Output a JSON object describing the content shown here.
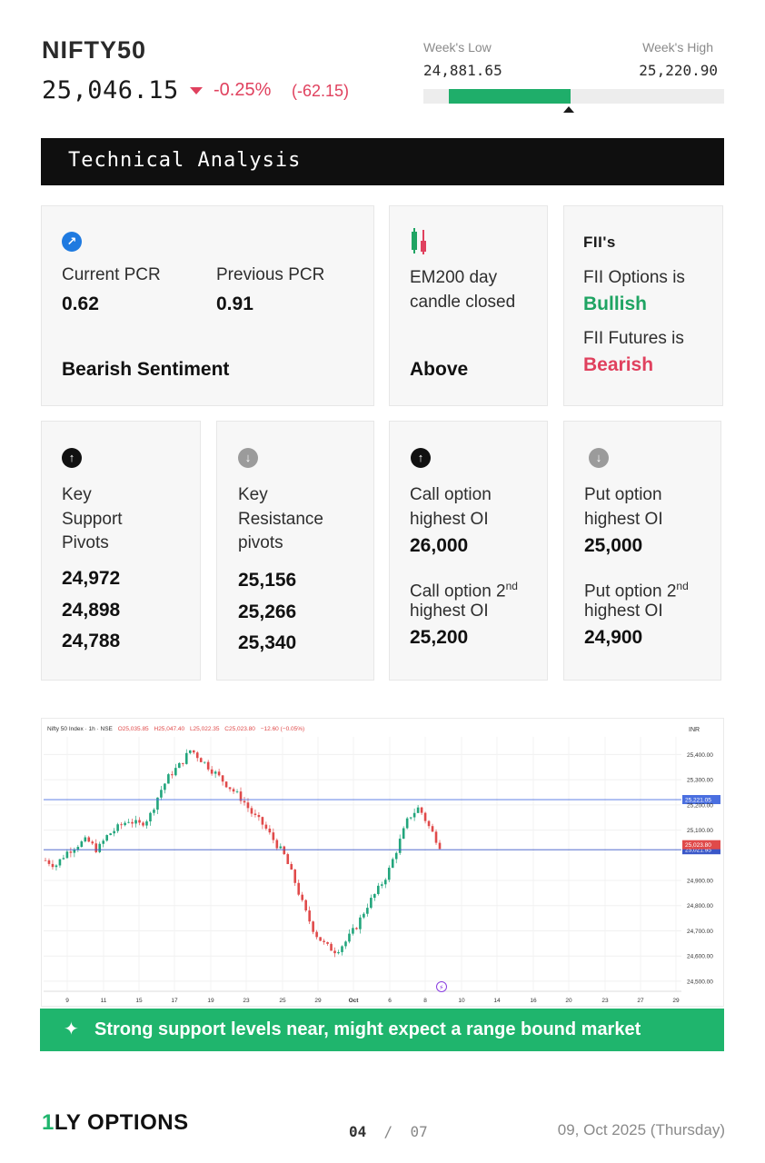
{
  "header": {
    "ticker": "NIFTY50",
    "price": "25,046.15",
    "change_pct": "-0.25%",
    "change_abs": "(-62.15)",
    "week_low_label": "Week's Low",
    "week_low_value": "24,881.65",
    "week_high_label": "Week's High",
    "week_high_value": "25,220.90",
    "range_fill_start_fraction": 0.085,
    "range_fill_end_fraction": 0.49
  },
  "section_title": "Technical Analysis",
  "pcr_card": {
    "icon": "arrow-up-right-icon",
    "current_label": "Current PCR",
    "current_value": "0.62",
    "previous_label": "Previous PCR",
    "previous_value": "0.91",
    "sentiment": "Bearish Sentiment"
  },
  "ema_card": {
    "icon": "candlestick-icon",
    "line1": "EM200 day",
    "line2": "candle closed",
    "value": "Above"
  },
  "fii_card": {
    "logo_text": "FII's",
    "options_label": "FII Options is",
    "options_value": "Bullish",
    "futures_label": "FII Futures is",
    "futures_value": "Bearish"
  },
  "support_card": {
    "icon": "arrow-up-icon",
    "label_lines": [
      "Key",
      "Support",
      "Pivots"
    ],
    "values": [
      "24,972",
      "24,898",
      "24,788"
    ]
  },
  "resistance_card": {
    "icon": "arrow-down-icon",
    "label_lines": [
      "Key",
      "Resistance",
      "pivots"
    ],
    "values": [
      "25,156",
      "25,266",
      "25,340"
    ]
  },
  "call_card": {
    "icon": "arrow-up-icon",
    "l1a": "Call option",
    "l1b": "highest OI",
    "v1": "26,000",
    "l2a": "Call option 2",
    "l2sup": "nd",
    "l2b": "highest OI",
    "v2": "25,200"
  },
  "put_card": {
    "icon": "arrow-down-icon",
    "l1a": "Put option",
    "l1b": "highest OI",
    "v1": "25,000",
    "l2a": "Put option 2",
    "l2sup": "nd",
    "l2b": "highest OI",
    "v2": "24,900"
  },
  "chart": {
    "legend_prefix": "Nifty 50 Index · 1h · NSE",
    "legend_o": "O25,035.85",
    "legend_h": "H25,047.40",
    "legend_l": "L25,022.35",
    "legend_c": "C25,023.80",
    "legend_chg": "−12.60 (−0.05%)",
    "currency": "INR",
    "y_ticks": [
      "25,400.00",
      "25,300.00",
      "25,200.00",
      "25,100.00",
      "24,900.00",
      "24,800.00",
      "24,700.00",
      "24,600.00",
      "24,500.00"
    ],
    "y_tick_values": [
      25400,
      25300,
      25200,
      25100,
      24900,
      24800,
      24700,
      24600,
      24500
    ],
    "x_ticks": [
      "9",
      "11",
      "15",
      "17",
      "19",
      "23",
      "25",
      "29",
      "Oct",
      "6",
      "8",
      "10",
      "14",
      "16",
      "20",
      "23",
      "27",
      "29"
    ],
    "line_upper_value": 25221.05,
    "line_upper_label": "25,221.05",
    "last_price_label": "25,023.80",
    "last_price_value": 25023.8,
    "line_lower_value": 25021.95,
    "line_lower_label": "25,021.95",
    "y_min": 24460,
    "y_max": 25470,
    "lightning_icon": "lightning-icon",
    "price_path": [
      24980,
      24960,
      25010,
      25040,
      25060,
      25020,
      25080,
      25110,
      25140,
      25120,
      25150,
      25250,
      25320,
      25360,
      25420,
      25380,
      25340,
      25300,
      25260,
      25220,
      25160,
      25120,
      25060,
      25000,
      24900,
      24780,
      24690,
      24640,
      24620,
      24660,
      24720,
      24800,
      24860,
      24930,
      25040,
      25150,
      25190,
      25110,
      25040
    ]
  },
  "banner": {
    "icon": "sparkle-icon",
    "text": "Strong support levels near, might expect a range bound market"
  },
  "footer": {
    "logo_mark": "1",
    "logo_text": "LY OPTIONS",
    "page_current": "04",
    "page_sep": "/",
    "page_total": "07",
    "date": "09, Oct 2025 (Thursday)"
  },
  "colors": {
    "accent_green": "#1fb56d",
    "bearish_red": "#e0415e",
    "candle_up": "#22a57c",
    "candle_down": "#e04a4a"
  }
}
